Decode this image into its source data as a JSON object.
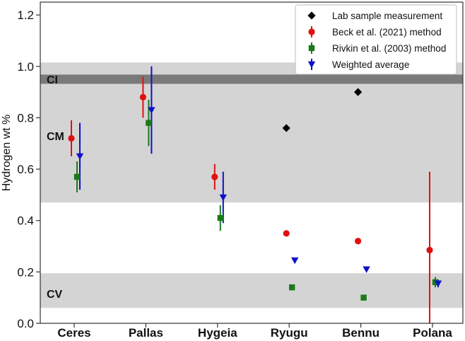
{
  "chart_data": {
    "type": "scatter",
    "ylabel": "Hydrogen wt %",
    "xlabel": "",
    "title": "",
    "ylim": [
      0.0,
      1.25
    ],
    "yticks": [
      "0.0",
      "0.2",
      "0.4",
      "0.6",
      "0.8",
      "1.0",
      "1.2"
    ],
    "categories": [
      "Ceres",
      "Pallas",
      "Hygeia",
      "Ryugu",
      "Bennu",
      "Polana"
    ],
    "bands": [
      {
        "label": "CV",
        "from": 0.06,
        "to": 0.195,
        "color": "#d4d4d4"
      },
      {
        "label": "CM",
        "from": 0.47,
        "to": 1.015,
        "color": "#d4d4d4"
      },
      {
        "label": "CI",
        "from": 0.932,
        "to": 0.968,
        "color": "#7a7a7a"
      }
    ],
    "legend_position": "top-right",
    "series": [
      {
        "name": "Lab sample measurement",
        "marker": "diamond",
        "color": "#000000",
        "points": [
          {
            "category": "Ryugu",
            "y": 0.76
          },
          {
            "category": "Bennu",
            "y": 0.9
          }
        ]
      },
      {
        "name": "Beck et al. (2021) method",
        "marker": "circle",
        "color": "#e01010",
        "points": [
          {
            "category": "Ceres",
            "y": 0.72,
            "low": 0.65,
            "high": 0.79
          },
          {
            "category": "Pallas",
            "y": 0.88,
            "low": 0.8,
            "high": 0.96
          },
          {
            "category": "Hygeia",
            "y": 0.57,
            "low": 0.52,
            "high": 0.62
          },
          {
            "category": "Ryugu",
            "y": 0.35
          },
          {
            "category": "Bennu",
            "y": 0.32
          },
          {
            "category": "Polana",
            "y": 0.285,
            "low": 0.0,
            "high": 0.59
          }
        ]
      },
      {
        "name": "Rivkin et al. (2003) method",
        "marker": "square",
        "color": "#1a7a1a",
        "points": [
          {
            "category": "Ceres",
            "y": 0.57,
            "low": 0.51,
            "high": 0.63
          },
          {
            "category": "Pallas",
            "y": 0.78,
            "low": 0.69,
            "high": 0.87
          },
          {
            "category": "Hygeia",
            "y": 0.41,
            "low": 0.36,
            "high": 0.46
          },
          {
            "category": "Ryugu",
            "y": 0.14
          },
          {
            "category": "Bennu",
            "y": 0.1
          },
          {
            "category": "Polana",
            "y": 0.16,
            "low": 0.14,
            "high": 0.18
          }
        ]
      },
      {
        "name": "Weighted average",
        "marker": "triangle-down",
        "color": "#1010c8",
        "points": [
          {
            "category": "Ceres",
            "y": 0.65,
            "low": 0.52,
            "high": 0.78
          },
          {
            "category": "Pallas",
            "y": 0.83,
            "low": 0.66,
            "high": 1.0
          },
          {
            "category": "Hygeia",
            "y": 0.49,
            "low": 0.39,
            "high": 0.59
          },
          {
            "category": "Ryugu",
            "y": 0.245
          },
          {
            "category": "Bennu",
            "y": 0.21
          },
          {
            "category": "Polana",
            "y": 0.155,
            "low": 0.14,
            "high": 0.17
          }
        ]
      }
    ]
  }
}
